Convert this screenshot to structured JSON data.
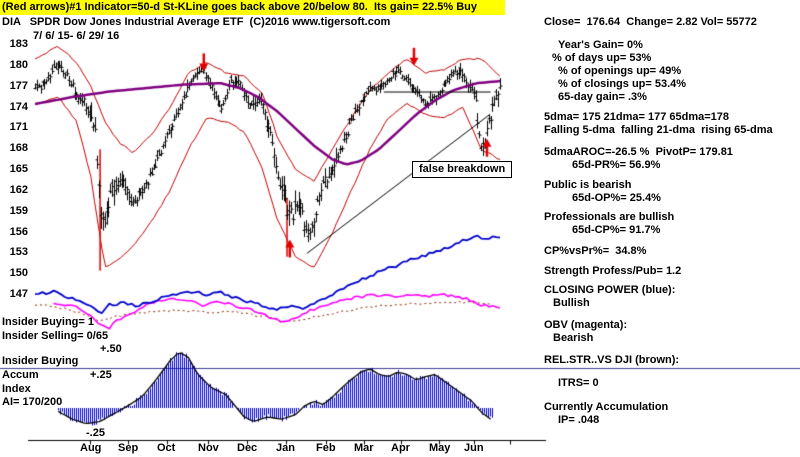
{
  "header": {
    "signal_line": "(Red arrows)#1 Indicator=50-d St-KLine goes back above 20/below 80.  Its gain= 22.5% Buy",
    "title_line": "DIA   SPDR Dow Jones Industrial Average ETF  (C)2016 www.tigersoft.com",
    "close_stats": "Close=  176.64  Change= 2.82 Vol= 55772",
    "date_range": "7/ 6/ 15- 6/ 29/ 16"
  },
  "left_labels": {
    "insider_buying": "Insider Buying= 1",
    "insider_selling": "Insider Selling= 0/65",
    "plus50": "+.50",
    "insider_buying2": "Insider Buying",
    "accum": "Accum",
    "plus25": "+.25",
    "index": "Index",
    "ai": "AI= 170/200",
    "minus25": "-.25"
  },
  "annotations": {
    "false_breakdown": "false breakdown"
  },
  "right_panel": {
    "lines": [
      "Year's Gain= 0%",
      "% of days up= 53%",
      "% of openings up= 49%",
      "% of closings up= 53.4%",
      "65-day gain= .3%",
      "5dma= 175 21dma= 177 65dma=178",
      "Falling 5-dma  falling 21-dma  rising 65-dma",
      "5dmaAROC=-26.5 %  PivotP= 179.81",
      "65d-PR%= 56.9%",
      "Public is bearish",
      "65d-OP%= 25.4%",
      "Professionals are bullish",
      "65d-CP%= 91.7%",
      "CP%vsPr%=  34.8%",
      "Strength Profess/Pub= 1.2",
      "CLOSING POWER (blue):",
      "Bullish",
      "OBV (magenta):",
      "Bearish",
      "REL.STR..VS DJI (brown):",
      "ITRS= 0",
      "Currently Accumulation",
      "IP= .048"
    ]
  },
  "chart_data": {
    "type": "line",
    "title": "DIA SPDR Dow Jones Industrial Average ETF daily chart with bands, 65-dma, Closing Power, OBV, rel. strength and Accumulation Index histogram",
    "period": "7/ 6/ 15- 6/ 29/ 16",
    "ylim": [
      147,
      183
    ],
    "y_ticks": [
      183,
      180,
      177,
      174,
      171,
      168,
      165,
      162,
      159,
      156,
      153,
      150,
      147
    ],
    "months": [
      "Aug",
      "Sep",
      "Oct",
      "Nov",
      "Dec",
      "Jan",
      "Feb",
      "Mar",
      "Apr",
      "May",
      "Jun"
    ],
    "note": "x values are fractions of the date axis (0=7/6/15, 1=6/29/16). Price series are in price units; *_level series are unscaled indicators given as fraction of chart height from top (0=top,1=bottom). accum values use the +.50/+.25/-.25 scale.",
    "price_close_anchors": [
      [
        0,
        176.5
      ],
      [
        0.02,
        177.5
      ],
      [
        0.045,
        180.3
      ],
      [
        0.07,
        178.5
      ],
      [
        0.09,
        176
      ],
      [
        0.11,
        174.5
      ],
      [
        0.13,
        170.5
      ],
      [
        0.14,
        159
      ],
      [
        0.15,
        157
      ],
      [
        0.165,
        162
      ],
      [
        0.19,
        164
      ],
      [
        0.21,
        160.5
      ],
      [
        0.235,
        162.5
      ],
      [
        0.26,
        166
      ],
      [
        0.29,
        171
      ],
      [
        0.32,
        175.5
      ],
      [
        0.345,
        179
      ],
      [
        0.365,
        179.5
      ],
      [
        0.385,
        176
      ],
      [
        0.4,
        174
      ],
      [
        0.42,
        177.5
      ],
      [
        0.44,
        177.8
      ],
      [
        0.46,
        174
      ],
      [
        0.48,
        175.5
      ],
      [
        0.5,
        172
      ],
      [
        0.52,
        165
      ],
      [
        0.54,
        160
      ],
      [
        0.555,
        158.5
      ],
      [
        0.57,
        161
      ],
      [
        0.585,
        155.5
      ],
      [
        0.6,
        158
      ],
      [
        0.62,
        163
      ],
      [
        0.64,
        165.5
      ],
      [
        0.66,
        168.5
      ],
      [
        0.68,
        172
      ],
      [
        0.7,
        175
      ],
      [
        0.72,
        176.5
      ],
      [
        0.74,
        177
      ],
      [
        0.76,
        178
      ],
      [
        0.78,
        179.5
      ],
      [
        0.8,
        178
      ],
      [
        0.82,
        176.5
      ],
      [
        0.84,
        174.5
      ],
      [
        0.86,
        175.5
      ],
      [
        0.88,
        177.5
      ],
      [
        0.9,
        179
      ],
      [
        0.915,
        179.8
      ],
      [
        0.93,
        177.5
      ],
      [
        0.945,
        176
      ],
      [
        0.955,
        169.5
      ],
      [
        0.965,
        168.5
      ],
      [
        0.975,
        171.5
      ],
      [
        0.985,
        174.5
      ],
      [
        1,
        176.6
      ]
    ],
    "volatility_anchors": [
      [
        0,
        0.9
      ],
      [
        0.1,
        1.1
      ],
      [
        0.13,
        2.2
      ],
      [
        0.15,
        2.8
      ],
      [
        0.18,
        1.8
      ],
      [
        0.22,
        1.4
      ],
      [
        0.28,
        1.1
      ],
      [
        0.34,
        1
      ],
      [
        0.4,
        1
      ],
      [
        0.46,
        1.2
      ],
      [
        0.5,
        1.8
      ],
      [
        0.55,
        2.2
      ],
      [
        0.6,
        2
      ],
      [
        0.65,
        1.4
      ],
      [
        0.7,
        1.1
      ],
      [
        0.75,
        0.9
      ],
      [
        0.8,
        0.9
      ],
      [
        0.85,
        1
      ],
      [
        0.9,
        1
      ],
      [
        0.94,
        1.3
      ],
      [
        0.96,
        2
      ],
      [
        1,
        1.6
      ]
    ],
    "band_upper": [
      [
        0,
        181
      ],
      [
        0.05,
        182.8
      ],
      [
        0.09,
        180.5
      ],
      [
        0.12,
        177
      ],
      [
        0.15,
        172
      ],
      [
        0.18,
        169
      ],
      [
        0.21,
        167.5
      ],
      [
        0.25,
        170
      ],
      [
        0.29,
        174
      ],
      [
        0.33,
        179
      ],
      [
        0.37,
        180.5
      ],
      [
        0.41,
        179
      ],
      [
        0.45,
        178.5
      ],
      [
        0.49,
        176
      ],
      [
        0.52,
        170
      ],
      [
        0.56,
        165
      ],
      [
        0.6,
        163.5
      ],
      [
        0.64,
        168
      ],
      [
        0.68,
        172.5
      ],
      [
        0.72,
        176.5
      ],
      [
        0.76,
        179
      ],
      [
        0.8,
        181
      ],
      [
        0.84,
        179
      ],
      [
        0.88,
        179.5
      ],
      [
        0.92,
        181
      ],
      [
        0.96,
        181
      ],
      [
        1,
        178.5
      ]
    ],
    "band_lower": [
      [
        0,
        174.5
      ],
      [
        0.05,
        175.5
      ],
      [
        0.09,
        172
      ],
      [
        0.12,
        164
      ],
      [
        0.15,
        151
      ],
      [
        0.18,
        152
      ],
      [
        0.21,
        154
      ],
      [
        0.25,
        157.5
      ],
      [
        0.29,
        162
      ],
      [
        0.33,
        168
      ],
      [
        0.37,
        172.5
      ],
      [
        0.41,
        172
      ],
      [
        0.45,
        170.5
      ],
      [
        0.49,
        165
      ],
      [
        0.52,
        158
      ],
      [
        0.56,
        152.5
      ],
      [
        0.6,
        151
      ],
      [
        0.64,
        156
      ],
      [
        0.68,
        162
      ],
      [
        0.72,
        168
      ],
      [
        0.76,
        172.5
      ],
      [
        0.8,
        174.5
      ],
      [
        0.84,
        173
      ],
      [
        0.88,
        172.5
      ],
      [
        0.92,
        174
      ],
      [
        0.96,
        168
      ],
      [
        1,
        166.5
      ]
    ],
    "ma65": [
      [
        0,
        174.5
      ],
      [
        0.08,
        175.5
      ],
      [
        0.16,
        176.3
      ],
      [
        0.24,
        176.8
      ],
      [
        0.32,
        177.3
      ],
      [
        0.4,
        177.5
      ],
      [
        0.44,
        176.8
      ],
      [
        0.48,
        175.5
      ],
      [
        0.52,
        173.5
      ],
      [
        0.56,
        171
      ],
      [
        0.6,
        168.5
      ],
      [
        0.64,
        166.5
      ],
      [
        0.67,
        165.8
      ],
      [
        0.7,
        166.3
      ],
      [
        0.74,
        168
      ],
      [
        0.78,
        170.5
      ],
      [
        0.82,
        173
      ],
      [
        0.86,
        175
      ],
      [
        0.9,
        176.5
      ],
      [
        0.95,
        177.5
      ],
      [
        1,
        177.8
      ]
    ],
    "closing_power_level": [
      [
        0,
        0.862
      ],
      [
        0.04,
        0.852
      ],
      [
        0.08,
        0.875
      ],
      [
        0.12,
        0.905
      ],
      [
        0.14,
        0.928
      ],
      [
        0.16,
        0.898
      ],
      [
        0.19,
        0.89
      ],
      [
        0.22,
        0.9
      ],
      [
        0.25,
        0.885
      ],
      [
        0.28,
        0.87
      ],
      [
        0.31,
        0.858
      ],
      [
        0.34,
        0.852
      ],
      [
        0.37,
        0.862
      ],
      [
        0.4,
        0.856
      ],
      [
        0.43,
        0.872
      ],
      [
        0.46,
        0.886
      ],
      [
        0.49,
        0.9
      ],
      [
        0.52,
        0.915
      ],
      [
        0.55,
        0.9
      ],
      [
        0.575,
        0.912
      ],
      [
        0.6,
        0.89
      ],
      [
        0.63,
        0.868
      ],
      [
        0.66,
        0.845
      ],
      [
        0.69,
        0.82
      ],
      [
        0.72,
        0.8
      ],
      [
        0.75,
        0.778
      ],
      [
        0.78,
        0.762
      ],
      [
        0.8,
        0.745
      ],
      [
        0.82,
        0.738
      ],
      [
        0.84,
        0.728
      ],
      [
        0.86,
        0.715
      ],
      [
        0.88,
        0.705
      ],
      [
        0.9,
        0.693
      ],
      [
        0.92,
        0.678
      ],
      [
        0.94,
        0.668
      ],
      [
        0.955,
        0.662
      ],
      [
        0.97,
        0.678
      ],
      [
        0.985,
        0.662
      ],
      [
        1,
        0.668
      ]
    ],
    "obv_level": [
      [
        0.04,
        0.89
      ],
      [
        0.08,
        0.9
      ],
      [
        0.11,
        0.925
      ],
      [
        0.14,
        0.965
      ],
      [
        0.16,
        0.975
      ],
      [
        0.18,
        0.945
      ],
      [
        0.21,
        0.93
      ],
      [
        0.24,
        0.9
      ],
      [
        0.27,
        0.882
      ],
      [
        0.3,
        0.873
      ],
      [
        0.33,
        0.883
      ],
      [
        0.36,
        0.898
      ],
      [
        0.39,
        0.882
      ],
      [
        0.42,
        0.895
      ],
      [
        0.45,
        0.908
      ],
      [
        0.48,
        0.922
      ],
      [
        0.51,
        0.945
      ],
      [
        0.54,
        0.958
      ],
      [
        0.57,
        0.932
      ],
      [
        0.6,
        0.912
      ],
      [
        0.63,
        0.896
      ],
      [
        0.66,
        0.882
      ],
      [
        0.69,
        0.872
      ],
      [
        0.72,
        0.866
      ],
      [
        0.75,
        0.862
      ],
      [
        0.78,
        0.868
      ],
      [
        0.81,
        0.862
      ],
      [
        0.84,
        0.868
      ],
      [
        0.87,
        0.862
      ],
      [
        0.9,
        0.866
      ],
      [
        0.93,
        0.878
      ],
      [
        0.96,
        0.898
      ],
      [
        1,
        0.908
      ]
    ],
    "rel_strength_level": [
      [
        0,
        0.895
      ],
      [
        0.05,
        0.905
      ],
      [
        0.1,
        0.925
      ],
      [
        0.14,
        0.952
      ],
      [
        0.18,
        0.935
      ],
      [
        0.22,
        0.928
      ],
      [
        0.26,
        0.92
      ],
      [
        0.3,
        0.915
      ],
      [
        0.34,
        0.918
      ],
      [
        0.38,
        0.922
      ],
      [
        0.42,
        0.918
      ],
      [
        0.46,
        0.928
      ],
      [
        0.5,
        0.94
      ],
      [
        0.54,
        0.955
      ],
      [
        0.58,
        0.948
      ],
      [
        0.62,
        0.932
      ],
      [
        0.66,
        0.92
      ],
      [
        0.7,
        0.908
      ],
      [
        0.74,
        0.9
      ],
      [
        0.78,
        0.895
      ],
      [
        0.82,
        0.892
      ],
      [
        0.86,
        0.89
      ],
      [
        0.9,
        0.888
      ],
      [
        0.94,
        0.89
      ],
      [
        0.98,
        0.895
      ]
    ],
    "accum_anchors": [
      [
        0.05,
        -0.03
      ],
      [
        0.08,
        -0.1
      ],
      [
        0.11,
        -0.14
      ],
      [
        0.14,
        -0.12
      ],
      [
        0.17,
        -0.05
      ],
      [
        0.2,
        0.02
      ],
      [
        0.23,
        0.1
      ],
      [
        0.26,
        0.25
      ],
      [
        0.29,
        0.42
      ],
      [
        0.31,
        0.5
      ],
      [
        0.33,
        0.45
      ],
      [
        0.35,
        0.3
      ],
      [
        0.38,
        0.18
      ],
      [
        0.41,
        0.12
      ],
      [
        0.43,
        0.02
      ],
      [
        0.45,
        -0.08
      ],
      [
        0.47,
        -0.12
      ],
      [
        0.5,
        -0.08
      ],
      [
        0.53,
        -0.1
      ],
      [
        0.56,
        -0.06
      ],
      [
        0.58,
        0.02
      ],
      [
        0.6,
        0.06
      ],
      [
        0.62,
        0.03
      ],
      [
        0.64,
        0.1
      ],
      [
        0.67,
        0.22
      ],
      [
        0.7,
        0.32
      ],
      [
        0.72,
        0.35
      ],
      [
        0.74,
        0.3
      ],
      [
        0.76,
        0.28
      ],
      [
        0.78,
        0.32
      ],
      [
        0.8,
        0.3
      ],
      [
        0.82,
        0.25
      ],
      [
        0.84,
        0.28
      ],
      [
        0.86,
        0.3
      ],
      [
        0.88,
        0.24
      ],
      [
        0.9,
        0.18
      ],
      [
        0.92,
        0.12
      ],
      [
        0.94,
        0.06
      ],
      [
        0.96,
        -0.04
      ],
      [
        0.98,
        -0.1
      ]
    ],
    "red_spikes": [
      {
        "x": 0.14,
        "top": 168,
        "bottom": 150.5
      },
      {
        "x": 0.542,
        "top": 161,
        "bottom": 152.5
      }
    ],
    "markers": [
      {
        "type": "down",
        "x": 0.363,
        "price": 179.2
      },
      {
        "type": "down",
        "x": 0.815,
        "price": 180
      },
      {
        "type": "up",
        "x": 0.548,
        "price": 155
      },
      {
        "type": "up",
        "x": 0.972,
        "price": 169.5
      }
    ],
    "trendline": {
      "x1": 0.585,
      "price1": 153,
      "x2": 0.978,
      "price2": 173
    },
    "resistance": [
      {
        "x1": 0.75,
        "x2": 0.98,
        "price": 176.3
      }
    ],
    "colors": {
      "bands": "#c00000",
      "ma65": "#800080",
      "closing_power": "#0000cc",
      "obv": "#ff00ff",
      "rel_strength": "#8b2500",
      "histogram": "#0000cc",
      "ai_line": "#000000",
      "arrows": "#e00000",
      "banner": "#ffff00",
      "separator": "#3c3c96"
    }
  }
}
